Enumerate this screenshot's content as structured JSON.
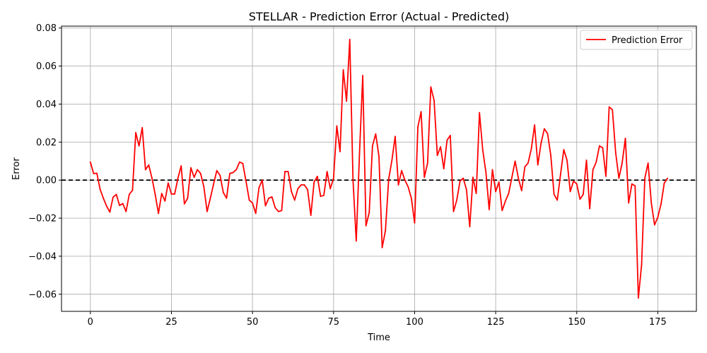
{
  "chart_data": {
    "type": "line",
    "title": "STELLAR - Prediction Error (Actual - Predicted)",
    "xlabel": "Time",
    "ylabel": "Error",
    "xlim": [
      -8.9,
      186.9
    ],
    "ylim": [
      -0.069,
      0.081
    ],
    "xticks": [
      0,
      25,
      50,
      75,
      100,
      125,
      150,
      175
    ],
    "yticks": [
      -0.06,
      -0.04,
      -0.02,
      0.0,
      0.02,
      0.04,
      0.06,
      0.08
    ],
    "xtick_labels": [
      "0",
      "25",
      "50",
      "75",
      "100",
      "125",
      "150",
      "175"
    ],
    "ytick_labels": [
      "−0.06",
      "−0.04",
      "−0.02",
      "0.00",
      "0.02",
      "0.04",
      "0.06",
      "0.08"
    ],
    "grid": true,
    "legend_position": "top-right",
    "reference_line": {
      "y": 0.0,
      "style": "dashed",
      "color": "#000000"
    },
    "series": [
      {
        "name": "Prediction Error",
        "color": "#ff0000",
        "values": [
          0.0095,
          0.0035,
          0.0036,
          -0.0048,
          -0.0095,
          -0.0136,
          -0.0168,
          -0.009,
          -0.0075,
          -0.0133,
          -0.0123,
          -0.0165,
          -0.0075,
          -0.0053,
          0.025,
          0.018,
          0.0276,
          0.0055,
          0.008,
          0.001,
          -0.0075,
          -0.0175,
          -0.007,
          -0.011,
          -0.0015,
          -0.0073,
          -0.0073,
          0.001,
          0.0075,
          -0.0125,
          -0.0095,
          0.0065,
          0.0015,
          0.0055,
          0.0035,
          -0.0035,
          -0.0165,
          -0.0095,
          -0.002,
          0.005,
          0.0025,
          -0.0065,
          -0.0095,
          0.0035,
          0.004,
          0.0055,
          0.0095,
          0.0088,
          -0.0005,
          -0.0105,
          -0.012,
          -0.0175,
          -0.004,
          0.0,
          -0.0135,
          -0.0095,
          -0.0088,
          -0.0145,
          -0.0165,
          -0.016,
          0.0045,
          0.0045,
          -0.006,
          -0.0105,
          -0.0045,
          -0.0025,
          -0.0025,
          -0.005,
          -0.0185,
          -0.001,
          0.002,
          -0.0085,
          -0.008,
          0.0045,
          -0.0045,
          0.001,
          0.0285,
          0.015,
          0.058,
          0.0415,
          0.074,
          0.0,
          -0.032,
          0.014,
          0.055,
          -0.024,
          -0.017,
          0.018,
          0.0243,
          0.0125,
          -0.0355,
          -0.0265,
          0.0005,
          0.0105,
          0.023,
          -0.0025,
          0.005,
          0.0,
          -0.0035,
          -0.0095,
          -0.0225,
          0.028,
          0.036,
          0.0015,
          0.009,
          0.049,
          0.042,
          0.013,
          0.0175,
          0.006,
          0.021,
          0.0235,
          -0.0165,
          -0.0105,
          -0.0005,
          0.001,
          -0.005,
          -0.0245,
          0.0015,
          -0.007,
          0.0355,
          0.016,
          0.004,
          -0.0155,
          0.0055,
          -0.006,
          -0.001,
          -0.016,
          -0.011,
          -0.007,
          0.0015,
          0.01,
          0.001,
          -0.0055,
          0.007,
          0.009,
          0.0165,
          0.029,
          0.008,
          0.0195,
          0.027,
          0.0245,
          0.013,
          -0.0075,
          -0.0105,
          0.003,
          0.016,
          0.0105,
          -0.006,
          -0.0005,
          -0.002,
          -0.01,
          -0.0075,
          0.0105,
          -0.015,
          0.0055,
          0.0095,
          0.018,
          0.017,
          0.002,
          0.0385,
          0.037,
          0.0145,
          0.001,
          0.009,
          0.022,
          -0.012,
          -0.002,
          -0.003,
          -0.062,
          -0.0445,
          0.001,
          0.009,
          -0.012,
          -0.0235,
          -0.0195,
          -0.0125,
          -0.0015,
          0.001
        ]
      }
    ]
  }
}
